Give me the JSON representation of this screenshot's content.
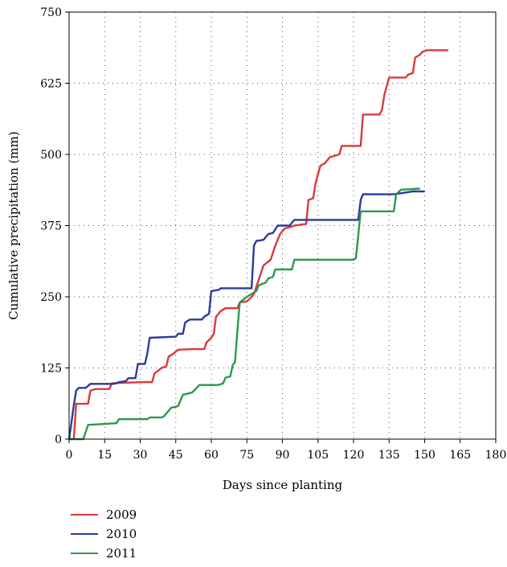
{
  "chart_data": {
    "type": "line",
    "title": "",
    "xlabel": "Days since planting",
    "ylabel": "Cumulative precipitation (mm)",
    "xlim": [
      0,
      180
    ],
    "ylim": [
      0,
      750
    ],
    "xticks": [
      0,
      15,
      30,
      45,
      60,
      75,
      90,
      105,
      120,
      135,
      150,
      165,
      180
    ],
    "yticks": [
      0,
      125,
      250,
      375,
      500,
      625,
      750
    ],
    "grid": true,
    "legend_position": "bottom-left",
    "series": [
      {
        "name": "2009",
        "color": "#d93a3a",
        "points": [
          [
            0,
            0
          ],
          [
            2,
            0
          ],
          [
            3,
            62
          ],
          [
            8,
            62
          ],
          [
            9,
            85
          ],
          [
            11,
            88
          ],
          [
            17,
            88
          ],
          [
            18,
            98
          ],
          [
            30,
            100
          ],
          [
            35,
            100
          ],
          [
            36,
            115
          ],
          [
            39,
            125
          ],
          [
            41,
            128
          ],
          [
            42,
            145
          ],
          [
            44,
            150
          ],
          [
            46,
            157
          ],
          [
            52,
            158
          ],
          [
            57,
            158
          ],
          [
            58,
            170
          ],
          [
            60,
            178
          ],
          [
            61,
            185
          ],
          [
            62,
            215
          ],
          [
            64,
            225
          ],
          [
            66,
            230
          ],
          [
            71,
            230
          ],
          [
            72,
            240
          ],
          [
            75,
            242
          ],
          [
            77,
            250
          ],
          [
            78,
            255
          ],
          [
            80,
            280
          ],
          [
            82,
            305
          ],
          [
            85,
            315
          ],
          [
            87,
            340
          ],
          [
            89,
            360
          ],
          [
            91,
            370
          ],
          [
            93,
            372
          ],
          [
            95,
            375
          ],
          [
            100,
            378
          ],
          [
            101,
            420
          ],
          [
            103,
            423
          ],
          [
            104,
            450
          ],
          [
            106,
            480
          ],
          [
            108,
            485
          ],
          [
            110,
            495
          ],
          [
            114,
            500
          ],
          [
            115,
            515
          ],
          [
            123,
            515
          ],
          [
            124,
            570
          ],
          [
            131,
            570
          ],
          [
            132,
            578
          ],
          [
            133,
            605
          ],
          [
            135,
            635
          ],
          [
            142,
            635
          ],
          [
            143,
            640
          ],
          [
            145,
            643
          ],
          [
            146,
            670
          ],
          [
            148,
            675
          ],
          [
            149,
            680
          ],
          [
            151,
            683
          ],
          [
            160,
            683
          ]
        ]
      },
      {
        "name": "2010",
        "color": "#2d3a9e",
        "points": [
          [
            0,
            0
          ],
          [
            1,
            30
          ],
          [
            2,
            60
          ],
          [
            3,
            85
          ],
          [
            4,
            90
          ],
          [
            7,
            90
          ],
          [
            9,
            97
          ],
          [
            19,
            97
          ],
          [
            21,
            100
          ],
          [
            24,
            102
          ],
          [
            25,
            107
          ],
          [
            28,
            107
          ],
          [
            29,
            132
          ],
          [
            32,
            132
          ],
          [
            33,
            150
          ],
          [
            34,
            178
          ],
          [
            45,
            180
          ],
          [
            46,
            185
          ],
          [
            48,
            185
          ],
          [
            49,
            205
          ],
          [
            51,
            210
          ],
          [
            56,
            210
          ],
          [
            57,
            215
          ],
          [
            59,
            220
          ],
          [
            60,
            260
          ],
          [
            63,
            262
          ],
          [
            64,
            265
          ],
          [
            71,
            265
          ],
          [
            77,
            265
          ],
          [
            78,
            340
          ],
          [
            79,
            348
          ],
          [
            82,
            350
          ],
          [
            84,
            360
          ],
          [
            86,
            362
          ],
          [
            88,
            375
          ],
          [
            93,
            375
          ],
          [
            95,
            385
          ],
          [
            110,
            385
          ],
          [
            113,
            385
          ],
          [
            122,
            385
          ],
          [
            123,
            420
          ],
          [
            124,
            430
          ],
          [
            137,
            430
          ],
          [
            145,
            435
          ],
          [
            150,
            435
          ]
        ]
      },
      {
        "name": "2011",
        "color": "#2a9a4a",
        "points": [
          [
            0,
            0
          ],
          [
            6,
            0
          ],
          [
            8,
            25
          ],
          [
            20,
            28
          ],
          [
            21,
            35
          ],
          [
            33,
            35
          ],
          [
            34,
            38
          ],
          [
            39,
            38
          ],
          [
            40,
            40
          ],
          [
            43,
            55
          ],
          [
            46,
            58
          ],
          [
            48,
            78
          ],
          [
            50,
            80
          ],
          [
            52,
            82
          ],
          [
            55,
            95
          ],
          [
            60,
            95
          ],
          [
            63,
            95
          ],
          [
            65,
            98
          ],
          [
            66,
            108
          ],
          [
            68,
            110
          ],
          [
            69,
            130
          ],
          [
            70,
            135
          ],
          [
            71,
            190
          ],
          [
            72,
            240
          ],
          [
            75,
            250
          ],
          [
            77,
            255
          ],
          [
            79,
            260
          ],
          [
            80,
            270
          ],
          [
            83,
            275
          ],
          [
            84,
            282
          ],
          [
            86,
            285
          ],
          [
            87,
            298
          ],
          [
            94,
            298
          ],
          [
            95,
            315
          ],
          [
            120,
            315
          ],
          [
            121,
            318
          ],
          [
            123,
            400
          ],
          [
            137,
            400
          ],
          [
            138,
            430
          ],
          [
            140,
            438
          ],
          [
            148,
            440
          ]
        ]
      }
    ]
  }
}
